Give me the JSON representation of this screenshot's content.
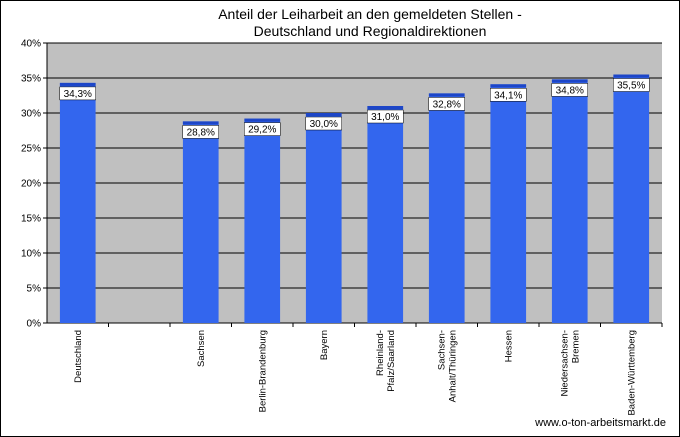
{
  "chart_data": {
    "type": "bar",
    "title_lines": [
      "Anteil der Leiharbeit an den gemeldeten Stellen -",
      "Deutschland und Regionaldirektionen"
    ],
    "categories": [
      [
        "Deutschland"
      ],
      [
        ""
      ],
      [
        "Sachsen"
      ],
      [
        "Berlin-Brandenburg"
      ],
      [
        "Bayern"
      ],
      [
        "Rheinland-",
        "Pfalz/Saarland"
      ],
      [
        "Sachsen-",
        "Anhalt/Thüringen"
      ],
      [
        "Hessen"
      ],
      [
        "Niedersachsen-",
        "Bremen"
      ],
      [
        "Baden-Württemberg"
      ]
    ],
    "values": [
      34.3,
      null,
      28.8,
      29.2,
      30.0,
      31.0,
      32.8,
      34.1,
      34.8,
      35.5
    ],
    "data_labels": [
      "34,3%",
      "",
      "28,8%",
      "29,2%",
      "30,0%",
      "31,0%",
      "32,8%",
      "34,1%",
      "34,8%",
      "35,5%"
    ],
    "ylim": [
      0,
      40
    ],
    "yticks": [
      0,
      5,
      10,
      15,
      20,
      25,
      30,
      35,
      40
    ],
    "ytick_labels": [
      "0%",
      "5%",
      "10%",
      "15%",
      "20%",
      "25%",
      "30%",
      "35%",
      "40%"
    ],
    "grid": true,
    "colors": {
      "bar": "#3366ee",
      "bar_top": "#1d46c8",
      "plot_bg": "#c0c0c0"
    }
  },
  "footer": {
    "source": "www.o-ton-arbeitsmarkt.de"
  }
}
